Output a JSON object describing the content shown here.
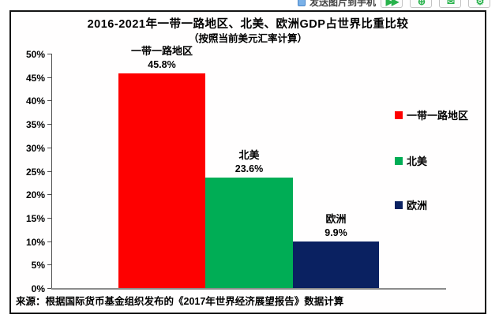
{
  "toolbar": {
    "send_label": "发送图片到手机",
    "buttons": [
      {
        "glyph": "▶▶"
      },
      {
        "glyph": "⊕"
      },
      {
        "glyph": "✉"
      },
      {
        "glyph": "⚙"
      }
    ]
  },
  "chart_data": {
    "type": "bar",
    "title": "2016-2021年一带一路地区、北美、欧洲GDP占世界比重比较",
    "subtitle": "（按照当前美元汇率计算）",
    "categories": [
      "一带一路地区",
      "北美",
      "欧洲"
    ],
    "values": [
      45.8,
      23.6,
      9.9
    ],
    "value_labels": [
      "45.8%",
      "23.6%",
      "9.9%"
    ],
    "colors": [
      "#fe0000",
      "#00ad55",
      "#0a2161"
    ],
    "ylim": [
      0,
      50
    ],
    "ytick_labels": [
      "50%",
      "45%",
      "40%",
      "35%",
      "30%",
      "25%",
      "20%",
      "15%",
      "10%",
      "5%",
      "0%"
    ],
    "grid": false,
    "legend_position": "right",
    "legend": [
      {
        "label": "一带一路地区",
        "color": "#fe0000"
      },
      {
        "label": "北美",
        "color": "#00ad55"
      },
      {
        "label": "欧洲",
        "color": "#0a2161"
      }
    ],
    "source": "来源：根据国际货币基金组织发布的《2017年世界经济展望报告》数据计算"
  }
}
